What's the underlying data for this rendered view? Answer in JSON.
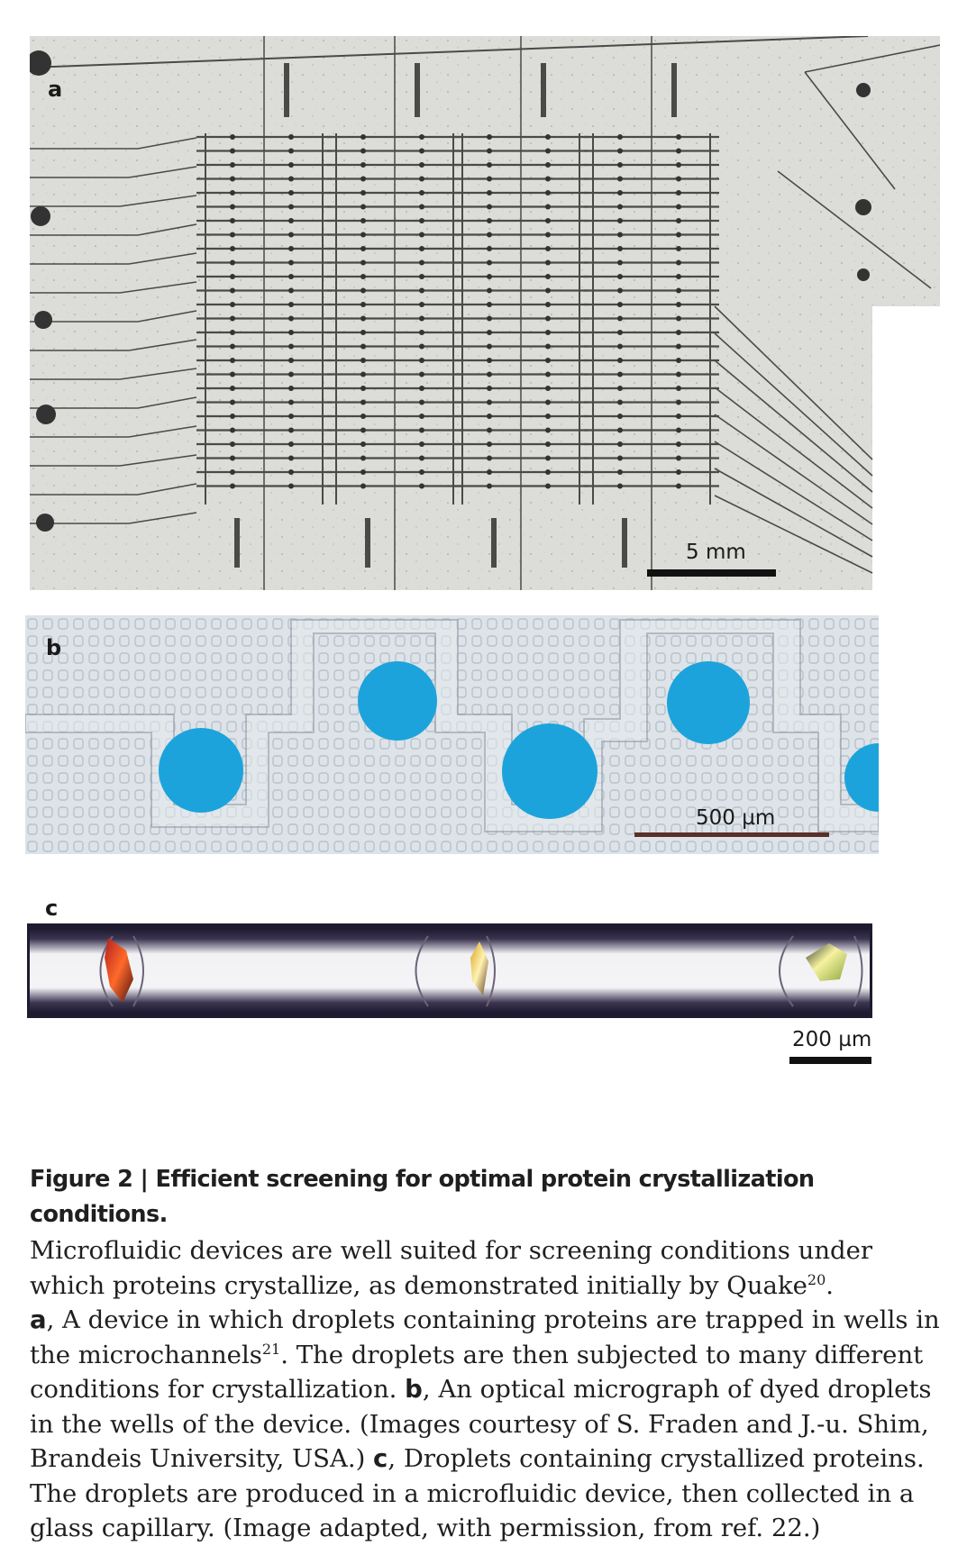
{
  "figure": {
    "panel_a": {
      "label": "a",
      "scale_text": "5 mm"
    },
    "panel_b": {
      "label": "b",
      "scale_text": "500 µm"
    },
    "panel_c": {
      "label": "c",
      "scale_text": "200 µm"
    },
    "caption": {
      "figure_number": "Figure 2",
      "separator": " | ",
      "title": "Efficient screening for optimal protein crystallization conditions.",
      "intro": "Microfluidic devices are well suited for screening conditions under which proteins crystallize, as demonstrated initially by Quake",
      "ref_20": "20",
      "intro_end": ".",
      "a_label": "a",
      "a_text": ", A device in which droplets containing proteins are trapped in wells in the microchannels",
      "ref_21": "21",
      "a_text2": ". The droplets are then subjected to many different conditions for crystallization. ",
      "b_label": "b",
      "b_text": ", An optical micrograph of dyed droplets in the wells of the device. (Images courtesy of S. Fraden and J.-u. Shim, Brandeis University, USA.) ",
      "c_label": "c",
      "c_text": ", Droplets containing crystallized proteins. The droplets are produced in a microfluidic device, then collected in a glass capillary. (Image adapted, with permission, from ref. 22.)"
    },
    "colors": {
      "droplet": "#1ca3dc",
      "scale_bar_b": "#5a2f2a",
      "capillary_dark": "#1e1a30"
    }
  }
}
